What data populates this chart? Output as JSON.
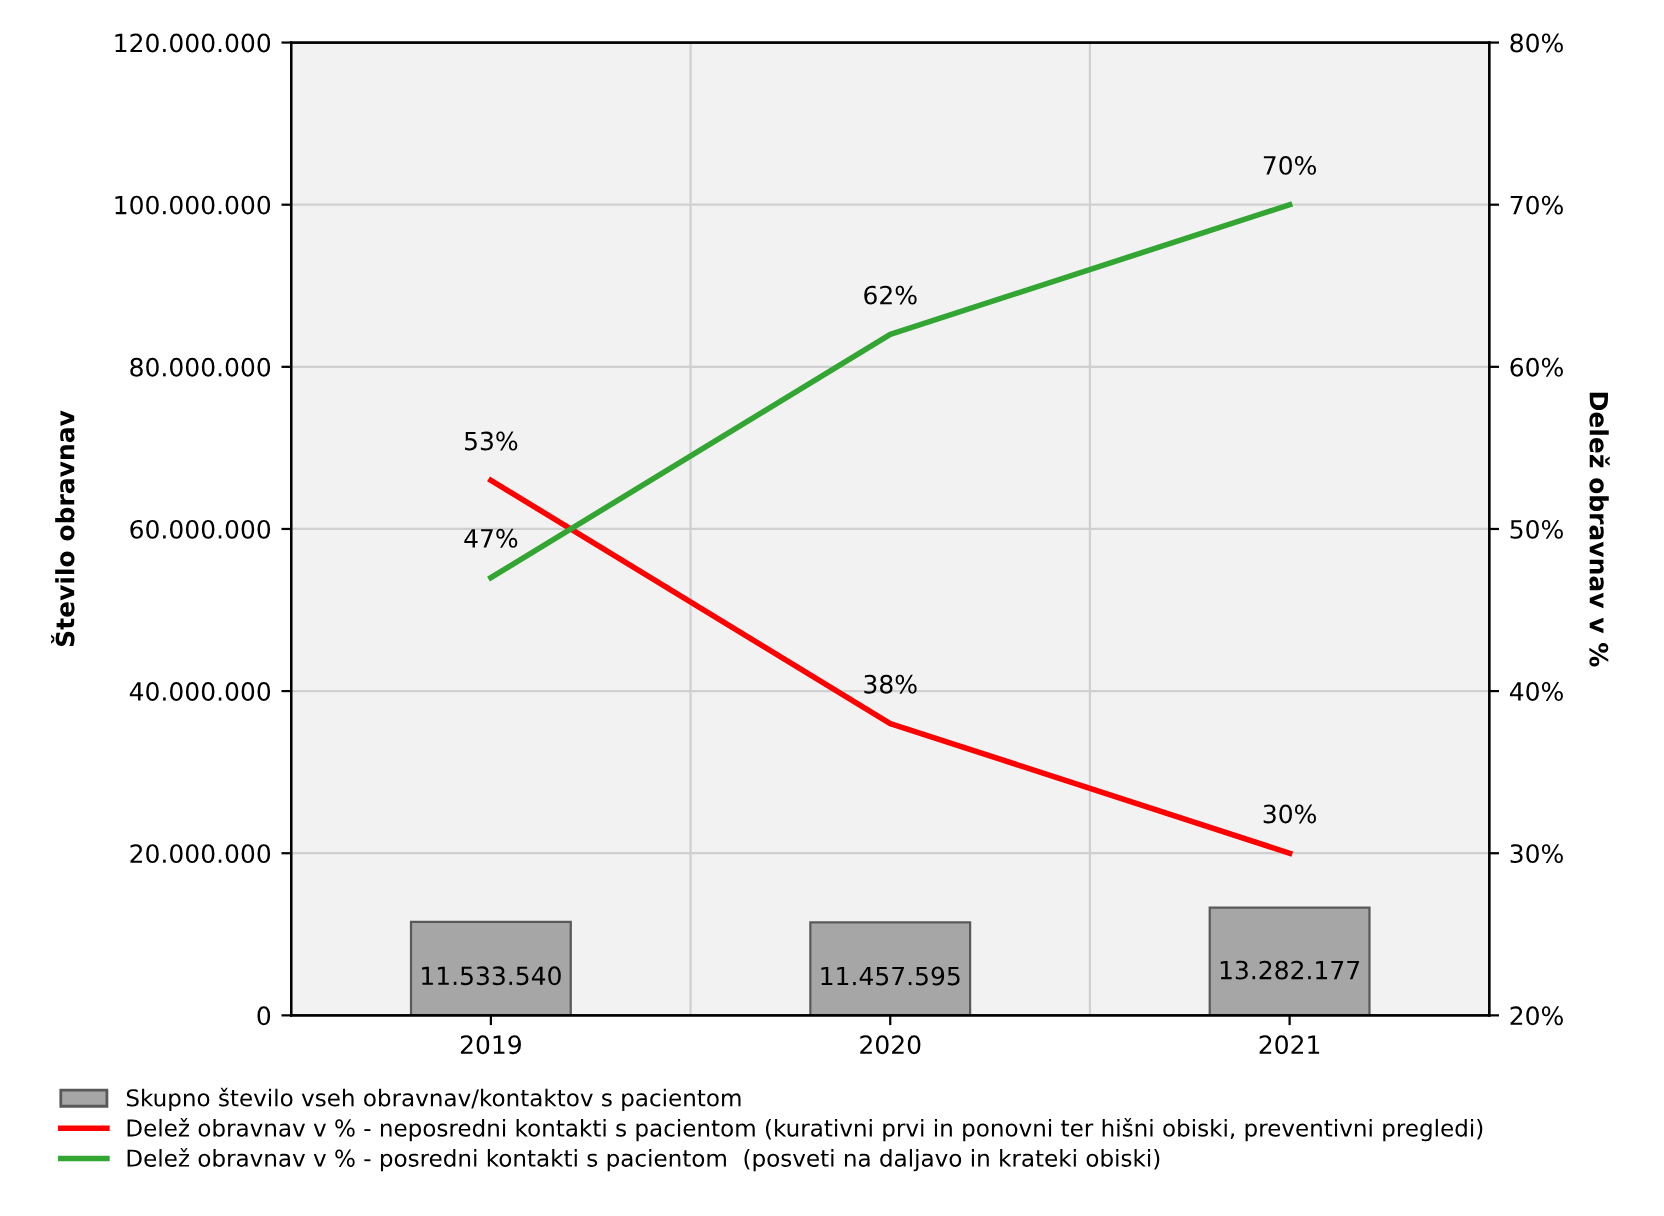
{
  "chart_data": {
    "type": "bar",
    "ylabel": "Število obravnav",
    "y2label": "Delež obravnav v %",
    "categories": [
      "2019",
      "2020",
      "2021"
    ],
    "ylim": [
      0,
      120000000
    ],
    "yticks": [
      {
        "value": 0,
        "label": "0"
      },
      {
        "value": 20000000,
        "label": "20.000.000"
      },
      {
        "value": 40000000,
        "label": "40.000.000"
      },
      {
        "value": 60000000,
        "label": "60.000.000"
      },
      {
        "value": 80000000,
        "label": "80.000.000"
      },
      {
        "value": 100000000,
        "label": "100.000.000"
      },
      {
        "value": 120000000,
        "label": "120.000.000"
      }
    ],
    "y2lim": [
      20,
      80
    ],
    "y2ticks": [
      {
        "value": 20,
        "label": "20%"
      },
      {
        "value": 30,
        "label": "30%"
      },
      {
        "value": 40,
        "label": "40%"
      },
      {
        "value": 50,
        "label": "50%"
      },
      {
        "value": 60,
        "label": "60%"
      },
      {
        "value": 70,
        "label": "70%"
      },
      {
        "value": 80,
        "label": "80%"
      }
    ],
    "series": [
      {
        "name": "Skupno število vseh obravnav/kontaktov s pacientom",
        "color": "#a6a6a6",
        "values": [
          11533540,
          11457595,
          13282177
        ],
        "value_labels": [
          "11.533.540",
          "11.457.595",
          "13.282.177"
        ]
      },
      {
        "name": "Delež obravnav v % - neposredni kontakti s pacientom (kurativni prvi in ponovni ter hišni obiski, preventivni pregledi)",
        "type": "line",
        "axis": "y2",
        "color": "#ff0000",
        "values": [
          53,
          38,
          30
        ],
        "value_labels": [
          "53%",
          "38%",
          "30%"
        ]
      },
      {
        "name": "Delež obravnav v % - posredni kontakti s pacientom  (posveti na daljavo in krateki obiski)",
        "type": "line",
        "axis": "y2",
        "color": "#33a532",
        "values": [
          47,
          62,
          70
        ],
        "value_labels": [
          "47%",
          "62%",
          "70%"
        ]
      }
    ],
    "grid": true,
    "legend": "bottom",
    "marker": "none",
    "line_style": "solid"
  }
}
